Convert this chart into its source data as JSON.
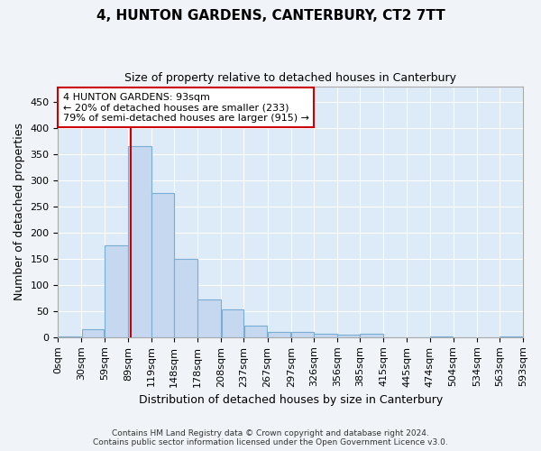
{
  "title": "4, HUNTON GARDENS, CANTERBURY, CT2 7TT",
  "subtitle": "Size of property relative to detached houses in Canterbury",
  "xlabel": "Distribution of detached houses by size in Canterbury",
  "ylabel": "Number of detached properties",
  "bar_color": "#c5d8f0",
  "bar_edge_color": "#7aadd4",
  "background_color": "#ddeaf7",
  "grid_color": "#ffffff",
  "annotation_line_color": "#cc0000",
  "annotation_box_text": [
    "4 HUNTON GARDENS: 93sqm",
    "← 20% of detached houses are smaller (233)",
    "79% of semi-detached houses are larger (915) →"
  ],
  "property_size": 93,
  "footer_text": "Contains HM Land Registry data © Crown copyright and database right 2024.\nContains public sector information licensed under the Open Government Licence v3.0.",
  "bin_edges": [
    0,
    30,
    59,
    89,
    119,
    148,
    178,
    208,
    237,
    267,
    297,
    326,
    356,
    385,
    415,
    445,
    474,
    504,
    534,
    563,
    593
  ],
  "bin_labels": [
    "0sqm",
    "30sqm",
    "59sqm",
    "89sqm",
    "119sqm",
    "148sqm",
    "178sqm",
    "208sqm",
    "237sqm",
    "267sqm",
    "297sqm",
    "326sqm",
    "356sqm",
    "385sqm",
    "415sqm",
    "445sqm",
    "474sqm",
    "504sqm",
    "534sqm",
    "563sqm",
    "593sqm"
  ],
  "bar_heights": [
    2,
    15,
    175,
    365,
    275,
    150,
    72,
    53,
    22,
    10,
    10,
    7,
    5,
    7,
    0,
    0,
    1,
    0,
    0,
    1
  ],
  "ylim": [
    0,
    480
  ],
  "yticks": [
    0,
    50,
    100,
    150,
    200,
    250,
    300,
    350,
    400,
    450
  ]
}
